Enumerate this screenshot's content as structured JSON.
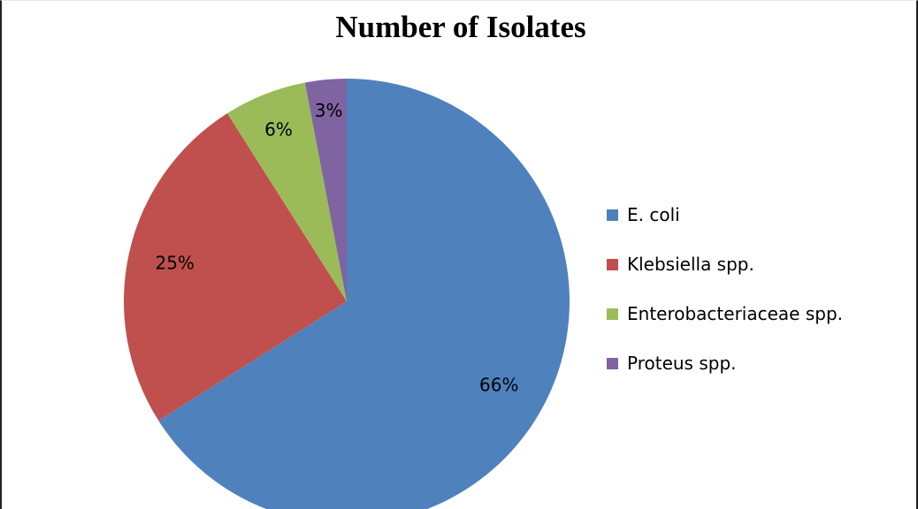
{
  "chart_data": {
    "type": "pie",
    "title": "Number of Isolates",
    "categories": [
      "E. coli",
      "Klebsiella spp.",
      "Enterobacteriaceae spp.",
      "Proteus spp."
    ],
    "values": [
      66,
      25,
      6,
      3
    ],
    "value_labels": [
      "66%",
      "25%",
      "6%",
      "3%"
    ],
    "colors": [
      "#4f81bd",
      "#c0504d",
      "#9bbb59",
      "#8064a2"
    ],
    "legend": {
      "position": "right",
      "labels": [
        "E. coli",
        "Klebsiella spp.",
        "Enterobacteriaceae spp.",
        "Proteus spp."
      ]
    }
  }
}
